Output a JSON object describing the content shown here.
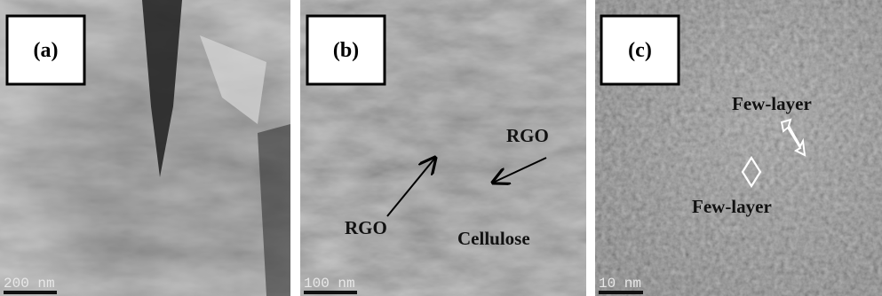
{
  "panels": [
    {
      "label": "(a)",
      "scale_bar": "200 nm"
    },
    {
      "label": "(b)",
      "scale_bar": "100 nm",
      "annotations": [
        "RGO",
        "RGO",
        "Cellulose"
      ]
    },
    {
      "label": "(c)",
      "scale_bar": "10 nm",
      "annotations": [
        "Few-layer",
        "Few-layer"
      ]
    }
  ]
}
